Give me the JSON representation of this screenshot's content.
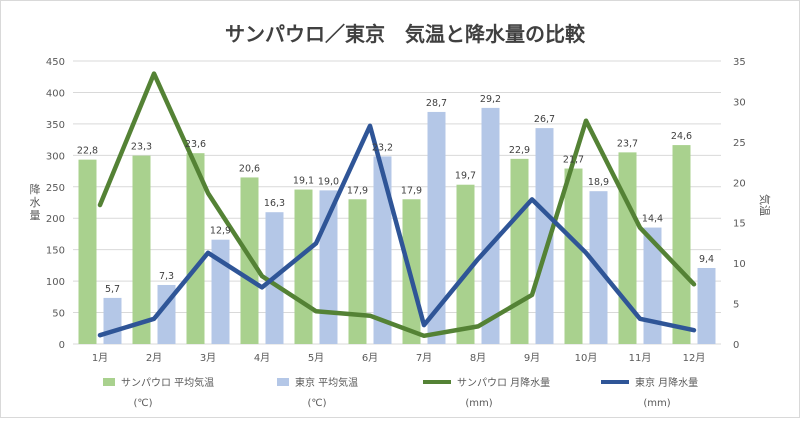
{
  "chart_data": {
    "type": "bar+line",
    "title": "サンパウロ／東京　気温と降水量の比較",
    "categories": [
      "1月",
      "2月",
      "3月",
      "4月",
      "5月",
      "6月",
      "7月",
      "8月",
      "9月",
      "10月",
      "11月",
      "12月"
    ],
    "y_left": {
      "label": "降水量",
      "ylim": [
        0,
        450
      ],
      "ticks": [
        0,
        50,
        100,
        150,
        200,
        250,
        300,
        350,
        400,
        450
      ]
    },
    "y_right": {
      "label": "気温",
      "ylim": [
        0,
        35
      ],
      "ticks": [
        0,
        5,
        10,
        15,
        20,
        25,
        30,
        35
      ]
    },
    "grid": true,
    "legend_position": "bottom",
    "bar_series": [
      {
        "name": "サンパウロ 平均気温",
        "unit_note": "(℃)",
        "axis": "right",
        "color": "#a9d18e",
        "values": [
          22.8,
          23.3,
          23.6,
          20.6,
          19.1,
          17.9,
          17.9,
          19.7,
          22.9,
          21.7,
          23.7,
          24.6
        ],
        "labels": [
          "22,8",
          "23,3",
          "23,6",
          "20,6",
          "19,1",
          "17,9",
          "17,9",
          "19,7",
          "22,9",
          "21,7",
          "23,7",
          "24,6"
        ]
      },
      {
        "name": "東京 平均気温",
        "unit_note": "(℃)",
        "axis": "right",
        "color": "#b4c7e7",
        "values": [
          5.7,
          7.3,
          12.9,
          16.3,
          19.0,
          23.2,
          28.7,
          29.2,
          26.7,
          18.9,
          14.4,
          9.4
        ],
        "labels": [
          "5,7",
          "7,3",
          "12,9",
          "16,3",
          "19,0",
          "23,2",
          "28,7",
          "29,2",
          "26,7",
          "18,9",
          "14,4",
          "9,4"
        ]
      }
    ],
    "line_series": [
      {
        "name": "サンパウロ 月降水量",
        "unit_note": "(mm)",
        "axis": "left",
        "color": "#548235",
        "values": [
          221,
          430,
          240,
          108,
          52,
          45,
          13,
          28,
          78,
          355,
          185,
          95
        ]
      },
      {
        "name": "東京 月降水量",
        "unit_note": "(mm)",
        "axis": "left",
        "color": "#2f5597",
        "values": [
          14,
          40,
          145,
          90,
          160,
          347,
          30,
          135,
          230,
          145,
          40,
          22
        ]
      }
    ]
  }
}
